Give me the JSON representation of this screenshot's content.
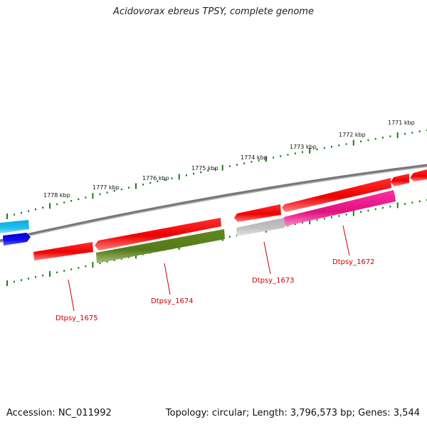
{
  "title": "Acidovorax ebreus TPSY, complete genome",
  "footer": {
    "accession": "Accession: NC_011992",
    "summary": "Topology: circular; Length: 3,796,573 bp; Genes: 3,544"
  },
  "kbp_labels": [
    "1771 kbp",
    "1772 kbp",
    "1773 kbp",
    "1774 kbp",
    "1775 kbp",
    "1776 kbp",
    "1777 kbp",
    "1778 kbp"
  ],
  "locus_tags": [
    "Dtpsy_1672",
    "Dtpsy_1673",
    "Dtpsy_1674",
    "Dtpsy_1675"
  ],
  "colors": {
    "backbone": "#808080",
    "cds": "#ff0000",
    "tick": "#1a7a1a",
    "gene_pink": "#e8168c",
    "gene_olive": "#6b8e23",
    "gene_gray": "#c0c0c0",
    "gene_cyan": "#19b4e8",
    "gene_blue": "#1010e0",
    "label": "#cc0000"
  }
}
